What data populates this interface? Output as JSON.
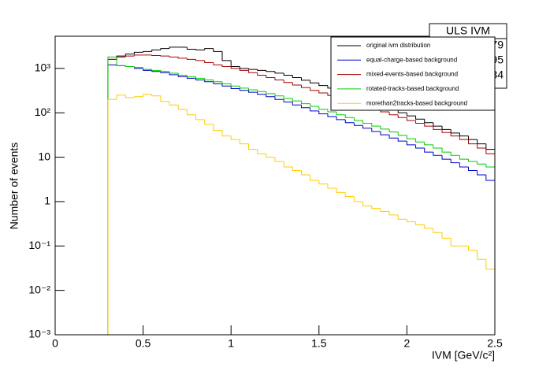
{
  "chart_data": {
    "type": "histogram",
    "xlabel": "IVM [GeV/c²]",
    "ylabel": "Number of events",
    "xlim": [
      0,
      2.5
    ],
    "xticks": [
      0,
      0.5,
      1,
      1.5,
      2,
      2.5
    ],
    "ylim": [
      0.001,
      5300
    ],
    "log_y": true,
    "yticks": [
      {
        "value": 0.001,
        "label": "10⁻³"
      },
      {
        "value": 0.01,
        "label": "10⁻²"
      },
      {
        "value": 0.1,
        "label": "10⁻¹"
      },
      1,
      10,
      {
        "value": 100,
        "label": "10²"
      },
      {
        "value": 1000,
        "label": "10³"
      }
    ],
    "legend_position": "top-right",
    "stats": {
      "title": "ULS IVM",
      "values": [
        817179,
        0.7195,
        0.3084
      ]
    },
    "bins": [
      0.3,
      0.35,
      0.4,
      0.45,
      0.5,
      0.55,
      0.6,
      0.65,
      0.7,
      0.75,
      0.8,
      0.85,
      0.9,
      0.95,
      1.0,
      1.05,
      1.1,
      1.15,
      1.2,
      1.25,
      1.3,
      1.35,
      1.4,
      1.45,
      1.5,
      1.55,
      1.6,
      1.65,
      1.7,
      1.75,
      1.8,
      1.85,
      1.9,
      1.95,
      2.0,
      2.05,
      2.1,
      2.15,
      2.2,
      2.25,
      2.3,
      2.35,
      2.4,
      2.45,
      2.5
    ],
    "series": [
      {
        "name": "original ivm distribution",
        "color": "#000000",
        "values": [
          1600,
          1900,
          2100,
          2300,
          2400,
          2600,
          2800,
          3000,
          3000,
          2700,
          2600,
          2800,
          2400,
          1500,
          1100,
          1000,
          950,
          900,
          850,
          780,
          700,
          620,
          540,
          470,
          410,
          360,
          310,
          270,
          230,
          200,
          170,
          145,
          120,
          100,
          85,
          72,
          60,
          50,
          42,
          35,
          30,
          25,
          20,
          15
        ]
      },
      {
        "name": "equal-charge-based background",
        "color": "#0000cc",
        "values": [
          1200,
          1150,
          1100,
          1000,
          900,
          850,
          800,
          720,
          650,
          600,
          550,
          500,
          450,
          400,
          350,
          320,
          290,
          260,
          230,
          200,
          175,
          150,
          130,
          110,
          95,
          82,
          70,
          60,
          52,
          45,
          38,
          32,
          27,
          23,
          19,
          16,
          13,
          11,
          9,
          7.5,
          6,
          5,
          4,
          3
        ]
      },
      {
        "name": "mixed-events-based background",
        "color": "#aa0000",
        "values": [
          1600,
          1800,
          1900,
          2000,
          2000,
          1950,
          1900,
          1800,
          1700,
          1600,
          1500,
          1350,
          1200,
          1100,
          1000,
          900,
          800,
          700,
          620,
          550,
          480,
          420,
          370,
          320,
          280,
          245,
          215,
          185,
          160,
          140,
          120,
          105,
          90,
          78,
          67,
          58,
          50,
          42,
          36,
          30,
          25,
          20,
          16,
          12
        ]
      },
      {
        "name": "rotated-tracks-based background",
        "color": "#00cc00",
        "values": [
          1800,
          1150,
          1100,
          1050,
          950,
          900,
          850,
          780,
          700,
          650,
          600,
          550,
          500,
          450,
          400,
          360,
          330,
          300,
          270,
          240,
          210,
          185,
          160,
          140,
          120,
          105,
          90,
          78,
          67,
          58,
          50,
          43,
          37,
          31,
          26,
          22,
          19,
          16,
          13,
          11,
          9,
          8,
          7,
          6
        ]
      },
      {
        "name": "morethan2tracks-based background",
        "color": "#ffcc00",
        "values": [
          200,
          250,
          220,
          230,
          260,
          240,
          180,
          150,
          120,
          90,
          70,
          55,
          40,
          30,
          25,
          20,
          15,
          12,
          10,
          8,
          6,
          5,
          4,
          3,
          2.5,
          2,
          1.6,
          1.3,
          1,
          0.8,
          0.7,
          0.6,
          0.5,
          0.4,
          0.35,
          0.3,
          0.25,
          0.2,
          0.15,
          0.1,
          0.1,
          0.08,
          0.05,
          0.03
        ]
      }
    ]
  }
}
